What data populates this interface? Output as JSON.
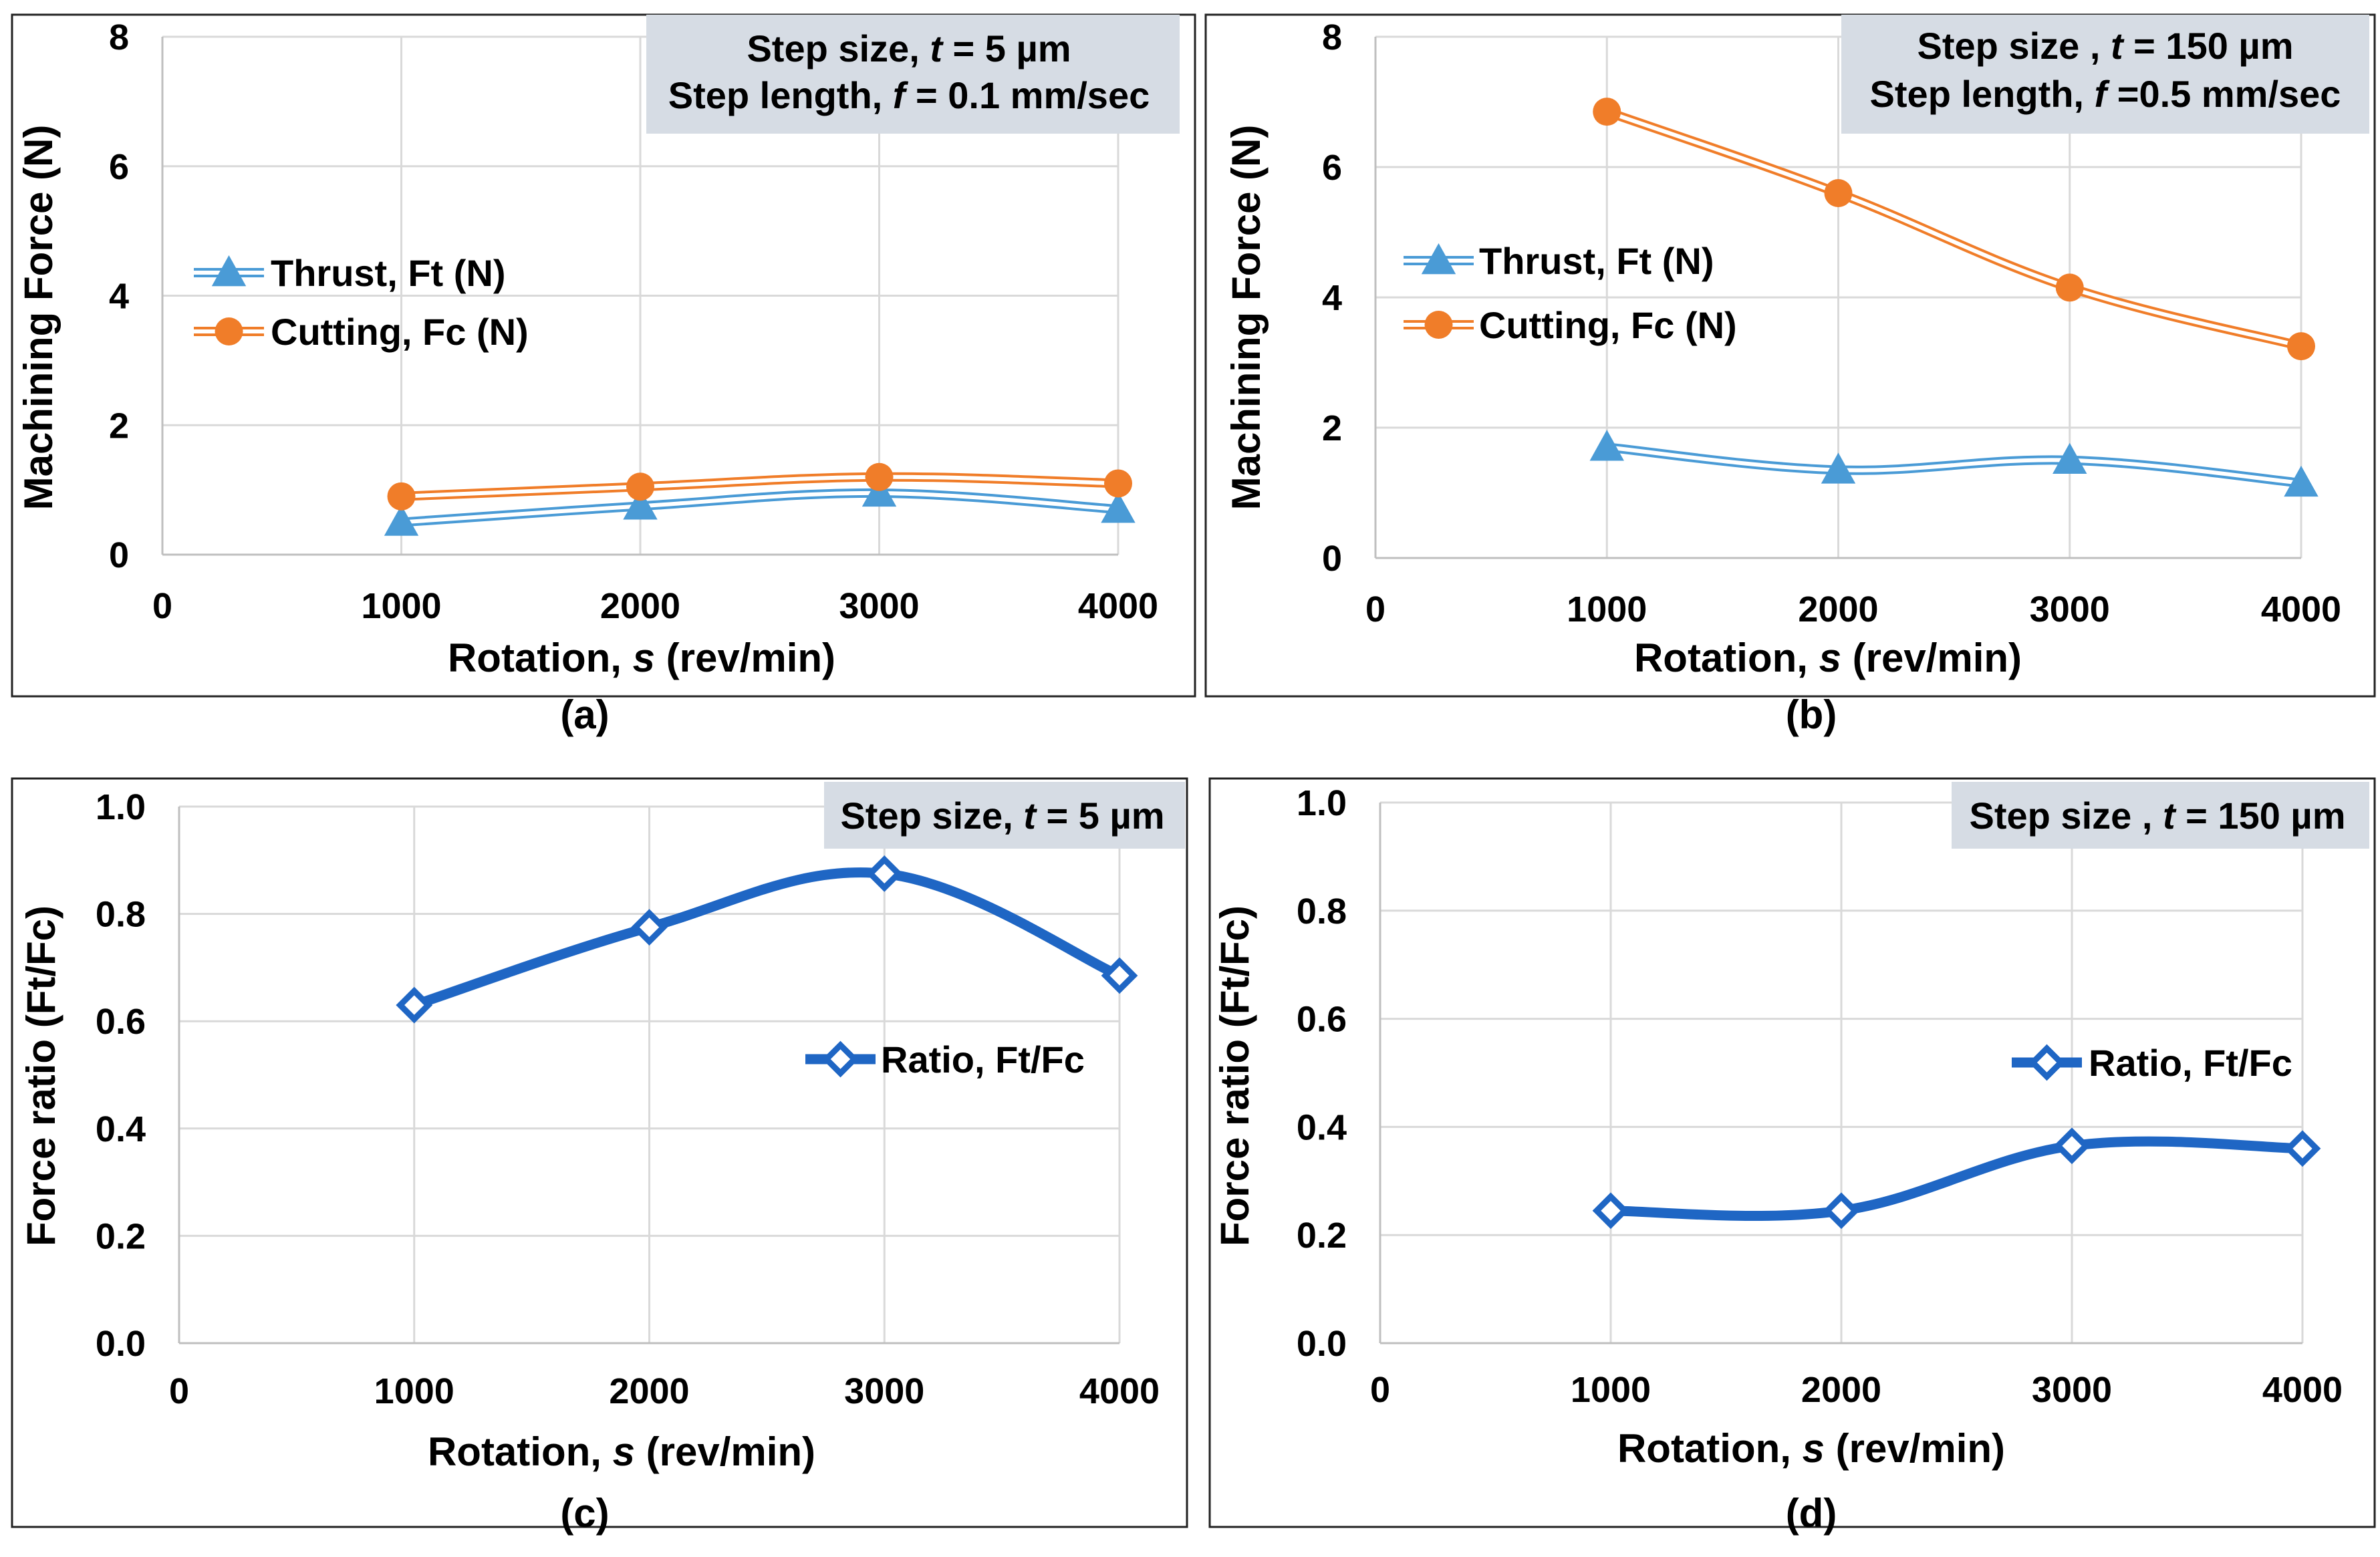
{
  "colors": {
    "thrust": "#4a9bd6",
    "cutting": "#f07d29",
    "ratio": "#1f66c4",
    "annotation_box": "#d6dce4"
  },
  "chart_data": [
    {
      "id": "a",
      "type": "line",
      "caption": "(a)",
      "xlabel_prefix": "Rotation, ",
      "xlabel_var": "s",
      "xlabel_suffix": " (rev/min)",
      "ylabel": "Machining Force (N)",
      "xlim": [
        0,
        4000
      ],
      "ylim": [
        0,
        8
      ],
      "xticks": [
        "0",
        "1000",
        "2000",
        "3000",
        "4000"
      ],
      "yticks": [
        "0",
        "2",
        "4",
        "6",
        "8"
      ],
      "x": [
        1000,
        2000,
        3000,
        4000
      ],
      "series": [
        {
          "name": "Thrust, Ft (N)",
          "marker": "triangle",
          "values": [
            0.5,
            0.75,
            0.95,
            0.7
          ]
        },
        {
          "name": "Cutting, Fc (N)",
          "marker": "circle",
          "values": [
            0.9,
            1.05,
            1.2,
            1.1
          ]
        }
      ],
      "annotation": [
        {
          "prefix": "Step size, ",
          "var": "t",
          "suffix": " = 5 µm"
        },
        {
          "prefix": "Step length, ",
          "var": "f",
          "suffix": " = 0.1 mm/sec"
        }
      ]
    },
    {
      "id": "b",
      "type": "line",
      "caption": "(b)",
      "xlabel_prefix": "Rotation, ",
      "xlabel_var": "s",
      "xlabel_suffix": " (rev/min)",
      "ylabel": "Machining Force (N)",
      "xlim": [
        0,
        4000
      ],
      "ylim": [
        0,
        8
      ],
      "xticks": [
        "0",
        "1000",
        "2000",
        "3000",
        "4000"
      ],
      "yticks": [
        "0",
        "2",
        "4",
        "6",
        "8"
      ],
      "x": [
        1000,
        2000,
        3000,
        4000
      ],
      "series": [
        {
          "name": "Thrust, Ft (N)",
          "marker": "triangle",
          "values": [
            1.7,
            1.35,
            1.5,
            1.15
          ]
        },
        {
          "name": "Cutting, Fc (N)",
          "marker": "circle",
          "values": [
            6.85,
            5.6,
            4.15,
            3.25
          ]
        }
      ],
      "annotation": [
        {
          "prefix": "Step size , ",
          "var": "t",
          "suffix": " = 150 µm"
        },
        {
          "prefix": "Step length, ",
          "var": "f",
          "suffix": " =0.5 mm/sec"
        }
      ]
    },
    {
      "id": "c",
      "type": "line",
      "caption": "(c)",
      "xlabel_prefix": "Rotation, ",
      "xlabel_var": "s",
      "xlabel_suffix": " (rev/min)",
      "ylabel": "Force ratio (Ft/Fc)",
      "xlim": [
        0,
        4000
      ],
      "ylim": [
        0,
        1
      ],
      "xticks": [
        "0",
        "1000",
        "2000",
        "3000",
        "4000"
      ],
      "yticks": [
        "0.0",
        "0.2",
        "0.4",
        "0.6",
        "0.8",
        "1.0"
      ],
      "x": [
        1000,
        2000,
        3000,
        4000
      ],
      "series": [
        {
          "name": "Ratio, Ft/Fc",
          "marker": "diamond",
          "values": [
            0.63,
            0.775,
            0.875,
            0.685
          ]
        }
      ],
      "annotation": [
        {
          "prefix": "Step size, ",
          "var": "t",
          "suffix": " = 5 µm"
        }
      ]
    },
    {
      "id": "d",
      "type": "line",
      "caption": "(d)",
      "xlabel_prefix": "Rotation, ",
      "xlabel_var": "s",
      "xlabel_suffix": " (rev/min)",
      "ylabel": "Force ratio (Ft/Fc)",
      "xlim": [
        0,
        4000
      ],
      "ylim": [
        0,
        1
      ],
      "xticks": [
        "0",
        "1000",
        "2000",
        "3000",
        "4000"
      ],
      "yticks": [
        "0.0",
        "0.2",
        "0.4",
        "0.6",
        "0.8",
        "1.0"
      ],
      "x": [
        1000,
        2000,
        3000,
        4000
      ],
      "series": [
        {
          "name": "Ratio, Ft/Fc",
          "marker": "diamond",
          "values": [
            0.245,
            0.245,
            0.365,
            0.36
          ]
        }
      ],
      "annotation": [
        {
          "prefix": "Step size , ",
          "var": "t",
          "suffix": " = 150 µm"
        }
      ]
    }
  ]
}
